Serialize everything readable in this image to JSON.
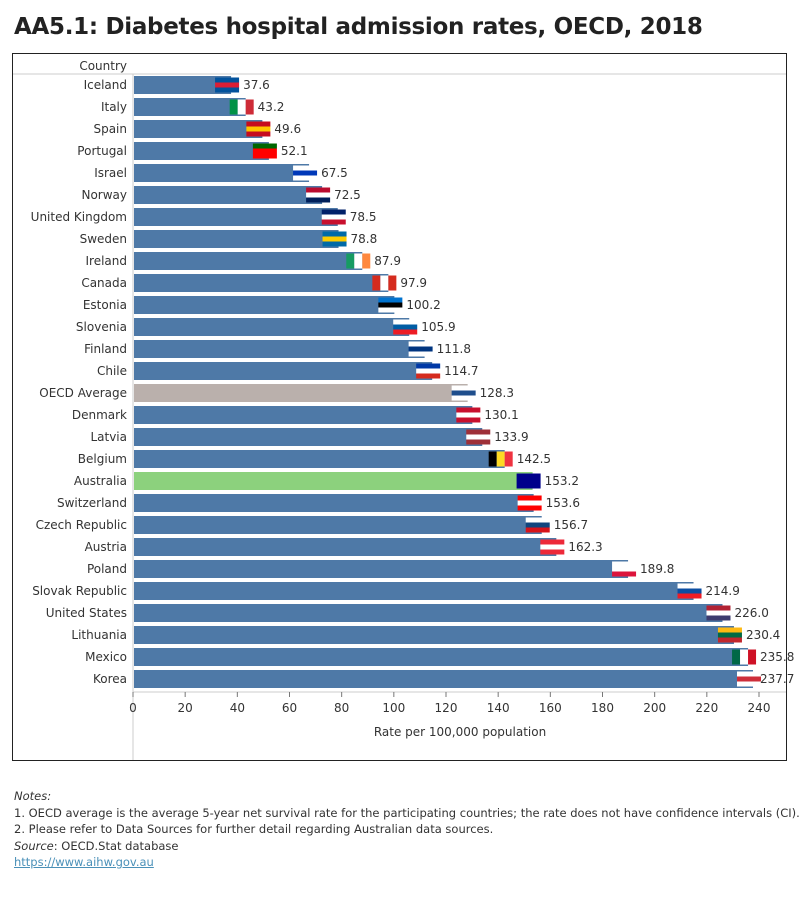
{
  "title": "AA5.1: Diabetes hospital admission rates, OECD, 2018",
  "chart_data": {
    "type": "bar",
    "orientation": "horizontal",
    "title": "AA5.1: Diabetes hospital admission rates, OECD, 2018",
    "row_header": "Country",
    "xlabel": "Rate per 100,000 population",
    "xlim": [
      0,
      240
    ],
    "xticks": [
      0,
      20,
      40,
      60,
      80,
      100,
      120,
      140,
      160,
      180,
      200,
      220,
      240
    ],
    "grid": false,
    "categories": [
      "Iceland",
      "Italy",
      "Spain",
      "Portugal",
      "Israel",
      "Norway",
      "United Kingdom",
      "Sweden",
      "Ireland",
      "Canada",
      "Estonia",
      "Slovenia",
      "Finland",
      "Chile",
      "OECD Average",
      "Denmark",
      "Latvia",
      "Belgium",
      "Australia",
      "Switzerland",
      "Czech Republic",
      "Austria",
      "Poland",
      "Slovak Republic",
      "United States",
      "Lithuania",
      "Mexico",
      "Korea"
    ],
    "values": [
      37.6,
      43.2,
      49.6,
      52.1,
      67.5,
      72.5,
      78.5,
      78.8,
      87.9,
      97.9,
      100.2,
      105.9,
      111.8,
      114.7,
      128.3,
      130.1,
      133.9,
      142.5,
      153.2,
      153.6,
      156.7,
      162.3,
      189.8,
      214.9,
      226.0,
      230.4,
      235.8,
      237.7
    ],
    "data_labels": [
      "37.6",
      "43.2",
      "49.6",
      "52.1",
      "67.5",
      "72.5",
      "78.5",
      "78.8",
      "87.9",
      "97.9",
      "100.2",
      "105.9",
      "111.8",
      "114.7",
      "128.3",
      "130.1",
      "133.9",
      "142.5",
      "153.2",
      "153.6",
      "156.7",
      "162.3",
      "189.8",
      "214.9",
      "226.0",
      "230.4",
      "235.8",
      "237.7"
    ],
    "colors": {
      "default": "#4e79a7",
      "OECD Average": "#bab0ac",
      "Australia": "#8cd17d"
    },
    "annotations": "country flag icons at bar ends"
  },
  "notes": {
    "heading": "Notes:",
    "lines": [
      "1. OECD average is the average 5-year net survival rate for the participating countries; the rate does not have confidence intervals (CI).",
      "2. Please refer to Data Sources for further detail regarding Australian data sources."
    ],
    "source_label": "Source",
    "source_text": ": OECD.Stat database",
    "link": "https://www.aihw.gov.au"
  }
}
